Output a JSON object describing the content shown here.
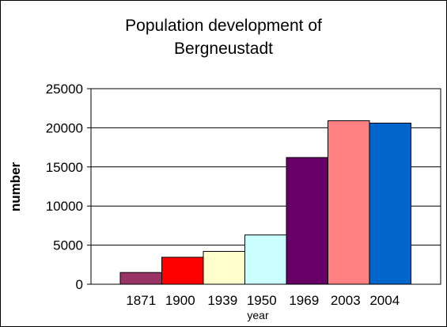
{
  "chart_data": {
    "type": "bar",
    "title_lines": [
      "Population development of",
      "Bergneustadt"
    ],
    "xlabel": "year",
    "ylabel": "number",
    "categories": [
      "1871",
      "1900",
      "1939",
      "1950",
      "1969",
      "2003",
      "2004"
    ],
    "values": [
      1500,
      3450,
      4200,
      6300,
      16200,
      20900,
      20600
    ],
    "colors": [
      "#993366",
      "#ff0000",
      "#ffffcc",
      "#ccffff",
      "#660066",
      "#ff8080",
      "#0066cc"
    ],
    "ylim": [
      0,
      25000
    ],
    "yticks": [
      "0",
      "5000",
      "10000",
      "15000",
      "20000",
      "25000"
    ],
    "grid": true,
    "legend": "none"
  }
}
